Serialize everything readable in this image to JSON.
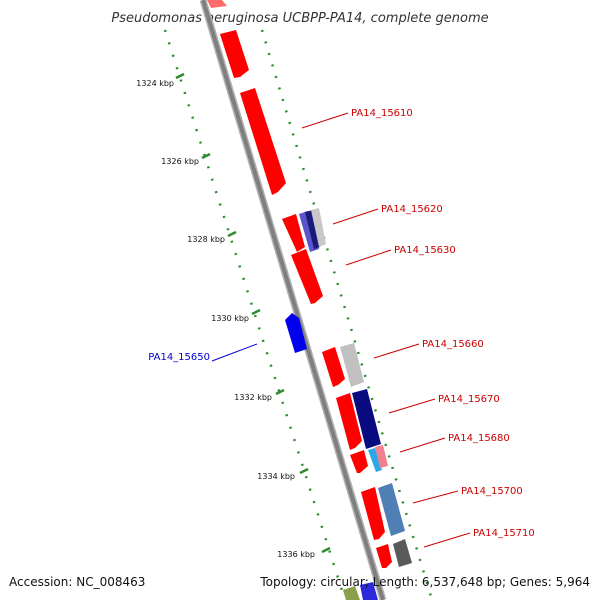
{
  "title": "Pseudomonas aeruginosa UCBPP-PA14, complete genome",
  "footer": {
    "accession": "Accession: NC_008463",
    "summary": "Topology: circular; Length: 6,537,648 bp; Genes: 5,964"
  },
  "colors": {
    "backbone": "#808080",
    "ruler": "#2e8b2e",
    "forward_gene": "#ff0000",
    "label_red": "#cc0000",
    "label_blue": "#0000cc"
  },
  "ticks": [
    "1324 kbp",
    "1326 kbp",
    "1328 kbp",
    "1330 kbp",
    "1332 kbp",
    "1334 kbp",
    "1336 kbp"
  ],
  "gene_labels": [
    {
      "text": "PA14_15610",
      "color": "#cc0000"
    },
    {
      "text": "PA14_15620",
      "color": "#cc0000"
    },
    {
      "text": "PA14_15630",
      "color": "#cc0000"
    },
    {
      "text": "PA14_15650",
      "color": "#0000cc"
    },
    {
      "text": "PA14_15660",
      "color": "#cc0000"
    },
    {
      "text": "PA14_15670",
      "color": "#cc0000"
    },
    {
      "text": "PA14_15680",
      "color": "#cc0000"
    },
    {
      "text": "PA14_15700",
      "color": "#cc0000"
    },
    {
      "text": "PA14_15710",
      "color": "#cc0000"
    }
  ]
}
